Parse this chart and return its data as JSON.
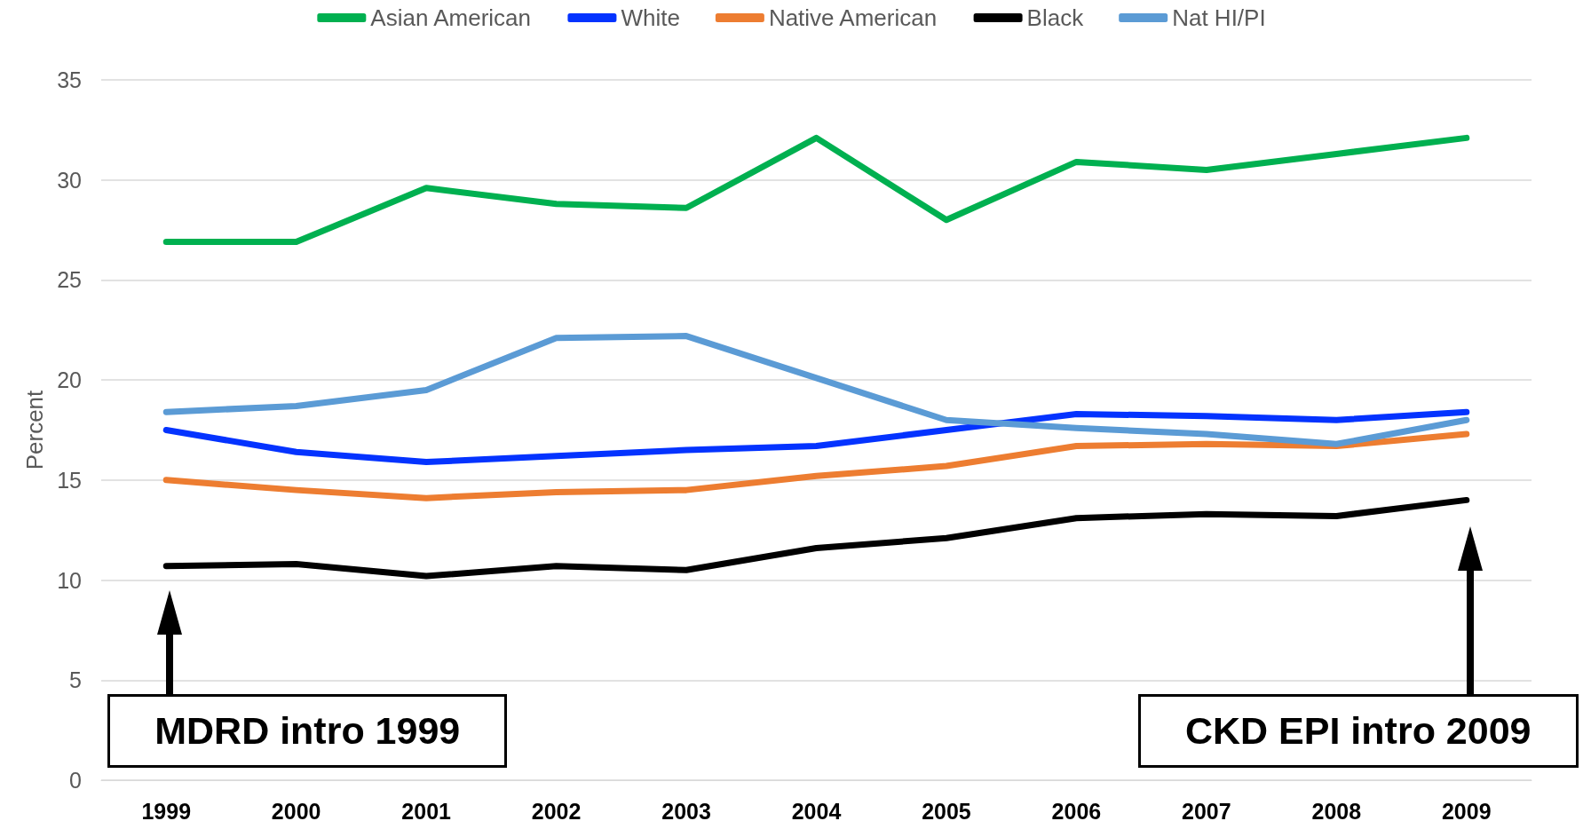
{
  "chart_data": {
    "type": "line",
    "ylabel": "Percent",
    "categories": [
      "1999",
      "2000",
      "2001",
      "2002",
      "2003",
      "2004",
      "2005",
      "2006",
      "2007",
      "2008",
      "2009"
    ],
    "ylim": [
      0,
      35
    ],
    "yticks": [
      0,
      5,
      10,
      15,
      20,
      25,
      30,
      35
    ],
    "grid": "y",
    "legend": "top",
    "line_style": "solid",
    "marker": "none",
    "series": [
      {
        "name": "Asian American",
        "color": "#00b050",
        "values": [
          26.9,
          26.9,
          29.6,
          28.8,
          28.6,
          32.1,
          28.0,
          30.9,
          30.5,
          31.3,
          32.1
        ]
      },
      {
        "name": "White",
        "color": "#0433ff",
        "values": [
          17.5,
          16.4,
          15.9,
          16.2,
          16.5,
          16.7,
          17.5,
          18.3,
          18.2,
          18.0,
          18.4
        ]
      },
      {
        "name": "Native American",
        "color": "#ed7d31",
        "values": [
          15.0,
          14.5,
          14.1,
          14.4,
          14.5,
          15.2,
          15.7,
          16.7,
          16.8,
          16.7,
          17.3
        ]
      },
      {
        "name": "Black",
        "color": "#000000",
        "values": [
          10.7,
          10.8,
          10.2,
          10.7,
          10.5,
          11.6,
          12.1,
          13.1,
          13.3,
          13.2,
          14.0
        ]
      },
      {
        "name": "Nat HI/PI",
        "color": "#5b9bd5",
        "values": [
          18.4,
          18.7,
          19.5,
          22.1,
          22.2,
          20.1,
          18.0,
          17.6,
          17.3,
          16.8,
          18.0
        ]
      }
    ],
    "annotations": [
      "MDRD intro 1999",
      "CKD EPI intro 2009"
    ]
  }
}
